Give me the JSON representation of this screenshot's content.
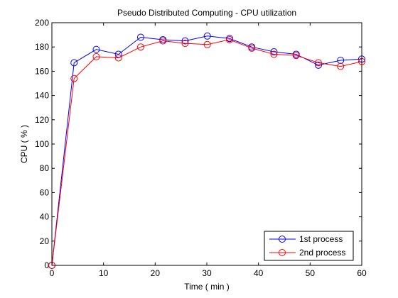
{
  "chart_data": {
    "type": "line",
    "title": "Pseudo Distributed Computing - CPU utilization",
    "xlabel": "Time ( min )",
    "ylabel": "CPU ( % )",
    "xlim": [
      0,
      60
    ],
    "ylim": [
      0,
      200
    ],
    "xticks": [
      0,
      10,
      20,
      30,
      40,
      50,
      60
    ],
    "yticks": [
      0,
      20,
      40,
      60,
      80,
      100,
      120,
      140,
      160,
      180,
      200
    ],
    "grid": false,
    "legend_position": "bottom-right",
    "x": [
      0,
      4.3,
      8.6,
      12.9,
      17.2,
      21.5,
      25.8,
      30.1,
      34.4,
      38.7,
      43.0,
      47.3,
      51.6,
      55.9,
      60.0
    ],
    "series": [
      {
        "name": "1st process",
        "color": "#0000ff",
        "values": [
          0,
          167,
          178,
          174,
          188,
          186,
          185,
          189,
          187,
          180,
          176,
          174,
          165,
          169,
          170
        ]
      },
      {
        "name": "2nd process",
        "color": "#ff0000",
        "values": [
          0,
          154,
          172,
          171,
          180,
          185,
          183,
          182,
          186,
          179,
          174,
          173,
          167,
          164,
          168
        ]
      }
    ]
  }
}
